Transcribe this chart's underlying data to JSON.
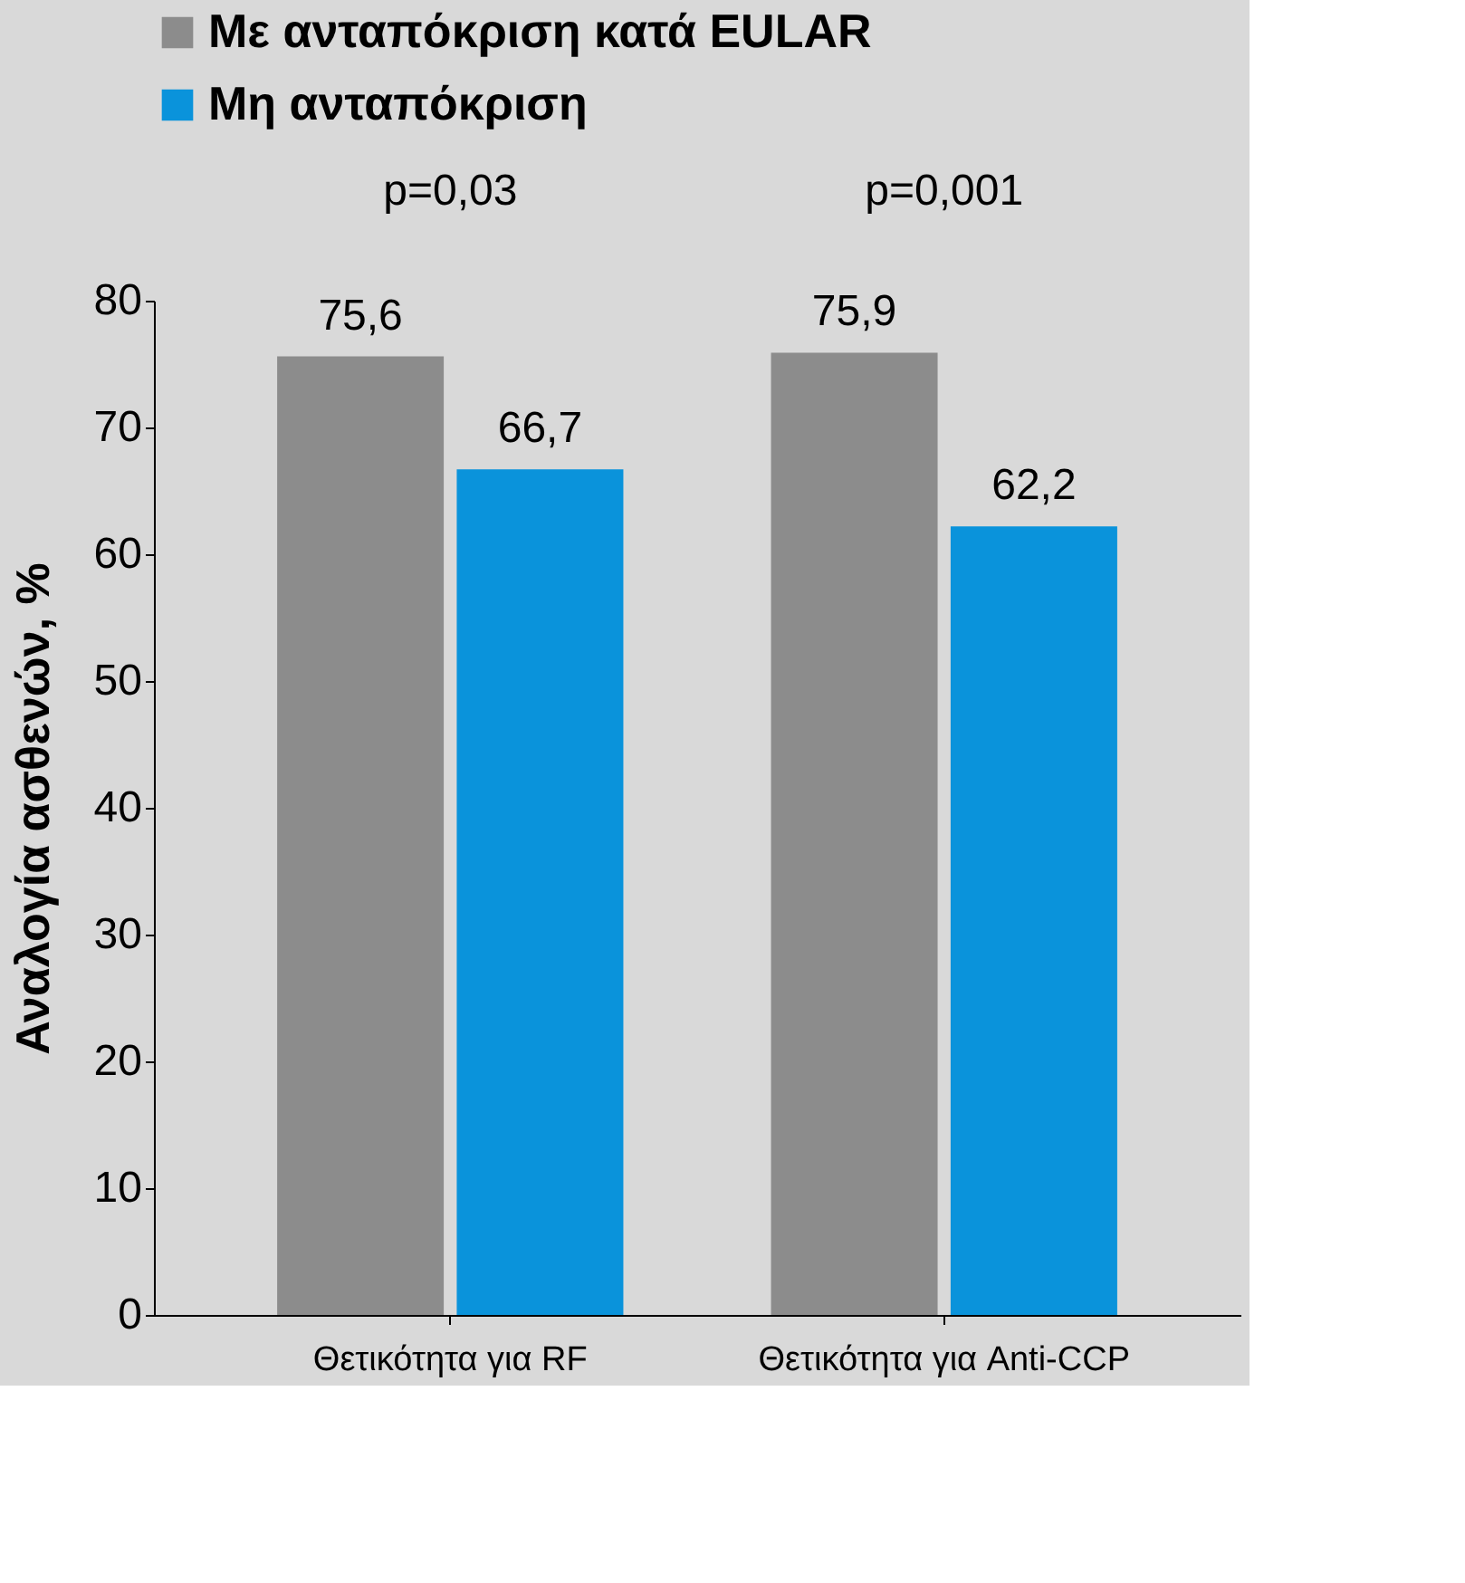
{
  "chart_data": {
    "type": "bar",
    "ylabel": "Αναλογία ασθενών, %",
    "categories": [
      "Θετικότητα για RF",
      "Θετικότητα για Anti-CCP"
    ],
    "series": [
      {
        "name": "Με ανταπόκριση κατά EULAR",
        "color": "#8c8c8c",
        "values": [
          75.6,
          75.9
        ],
        "value_labels": [
          "75,6",
          "75,9"
        ]
      },
      {
        "name": "Μη ανταπόκριση",
        "color": "#0a93db",
        "values": [
          66.7,
          62.2
        ],
        "value_labels": [
          "66,7",
          "62,2"
        ]
      }
    ],
    "ylim": [
      0,
      80
    ],
    "yticks": [
      0,
      10,
      20,
      30,
      40,
      50,
      60,
      70,
      80
    ],
    "annotations": [
      "p=0,03",
      "p=0,001"
    ],
    "legend": "top"
  }
}
